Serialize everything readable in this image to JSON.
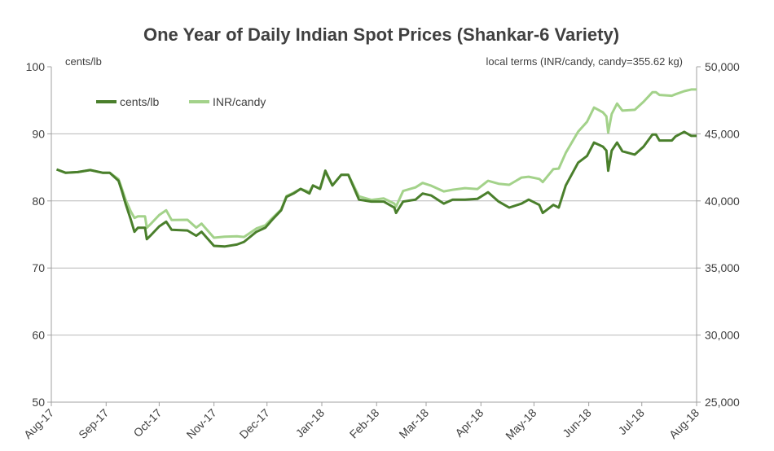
{
  "chart_data": {
    "type": "line",
    "title": "One Year of Daily Indian Spot Prices (Shankar-6 Variety)",
    "ylabel_left": "cents/lb",
    "ylabel_right": "local terms (INR/candy, candy=355.62 kg)",
    "ylim_left": [
      50,
      100
    ],
    "ylim_right": [
      25000,
      50000
    ],
    "yticks_left": [
      "50",
      "60",
      "70",
      "80",
      "90",
      "100"
    ],
    "yticks_right": [
      "25,000",
      "30,000",
      "35,000",
      "40,000",
      "45,000",
      "50,000"
    ],
    "xlim": [
      "2017-08-01",
      "2018-08-01"
    ],
    "xticks": [
      "Aug-17",
      "Sep-17",
      "Oct-17",
      "Nov-17",
      "Dec-17",
      "Jan-18",
      "Feb-18",
      "Mar-18",
      "Apr-18",
      "May-18",
      "Jun-18",
      "Jul-18",
      "Aug-18"
    ],
    "xtick_dates": [
      "2017-08-01",
      "2017-09-01",
      "2017-10-01",
      "2017-11-01",
      "2017-12-01",
      "2018-01-01",
      "2018-02-01",
      "2018-03-01",
      "2018-04-01",
      "2018-05-01",
      "2018-06-01",
      "2018-07-01",
      "2018-08-01"
    ],
    "grid": "horizontal",
    "legend_placement": "top-left",
    "dates": [
      "2017-08-04",
      "2017-08-09",
      "2017-08-16",
      "2017-08-23",
      "2017-08-30",
      "2017-09-03",
      "2017-09-08",
      "2017-09-10",
      "2017-09-12",
      "2017-09-15",
      "2017-09-17",
      "2017-09-19",
      "2017-09-23",
      "2017-09-24",
      "2017-09-26",
      "2017-10-01",
      "2017-10-05",
      "2017-10-08",
      "2017-10-17",
      "2017-10-22",
      "2017-10-25",
      "2017-10-28",
      "2017-11-01",
      "2017-11-07",
      "2017-11-14",
      "2017-11-18",
      "2017-11-25",
      "2017-11-30",
      "2017-12-04",
      "2017-12-09",
      "2017-12-12",
      "2017-12-16",
      "2017-12-20",
      "2017-12-25",
      "2017-12-27",
      "2017-12-31",
      "2018-01-03",
      "2018-01-07",
      "2018-01-12",
      "2018-01-16",
      "2018-01-22",
      "2018-01-29",
      "2018-02-05",
      "2018-02-11",
      "2018-02-12",
      "2018-02-16",
      "2018-02-23",
      "2018-02-27",
      "2018-03-04",
      "2018-03-11",
      "2018-03-16",
      "2018-03-23",
      "2018-03-30",
      "2018-04-05",
      "2018-04-11",
      "2018-04-17",
      "2018-04-24",
      "2018-04-28",
      "2018-05-04",
      "2018-05-06",
      "2018-05-12",
      "2018-05-15",
      "2018-05-19",
      "2018-05-26",
      "2018-05-31",
      "2018-06-04",
      "2018-06-09",
      "2018-06-11",
      "2018-06-12",
      "2018-06-14",
      "2018-06-17",
      "2018-06-20",
      "2018-06-27",
      "2018-07-02",
      "2018-07-07",
      "2018-07-09",
      "2018-07-11",
      "2018-07-18",
      "2018-07-20",
      "2018-07-25",
      "2018-07-29",
      "2018-08-01"
    ],
    "series": [
      {
        "name": "cents/lb",
        "axis": "left",
        "color": "#4a7f2c",
        "values": [
          84.7,
          84.2,
          84.3,
          84.6,
          84.2,
          84.2,
          83.0,
          81.4,
          79.6,
          77.2,
          75.4,
          76.0,
          76.0,
          74.3,
          74.8,
          76.2,
          76.9,
          75.7,
          75.6,
          74.8,
          75.4,
          74.5,
          73.3,
          73.2,
          73.5,
          73.9,
          75.4,
          76.0,
          77.2,
          78.6,
          80.6,
          81.1,
          81.8,
          81.1,
          82.3,
          81.8,
          84.5,
          82.3,
          83.9,
          83.9,
          80.2,
          79.9,
          79.9,
          79.0,
          78.2,
          79.9,
          80.2,
          81.1,
          80.8,
          79.6,
          80.2,
          80.2,
          80.3,
          81.3,
          79.9,
          79.0,
          79.6,
          80.2,
          79.4,
          78.2,
          79.4,
          79.0,
          82.3,
          85.7,
          86.7,
          88.7,
          88.1,
          87.5,
          84.5,
          87.5,
          88.7,
          87.4,
          86.9,
          88.1,
          89.9,
          89.9,
          89.0,
          89.0,
          89.6,
          90.3,
          89.7,
          89.7
        ]
      },
      {
        "name": "INR/candy",
        "axis": "right",
        "color": "#a3d28a",
        "values": [
          42350,
          42100,
          42150,
          42300,
          42100,
          42100,
          41620,
          40880,
          40100,
          39210,
          38730,
          38850,
          38850,
          38000,
          38250,
          38950,
          39300,
          38580,
          38590,
          38010,
          38310,
          37860,
          37260,
          37330,
          37360,
          37310,
          37940,
          38180,
          38720,
          39360,
          40360,
          40610,
          40900,
          40670,
          41150,
          40900,
          42130,
          41150,
          41950,
          41950,
          40340,
          40070,
          40190,
          39800,
          39580,
          40740,
          41010,
          41340,
          41130,
          40710,
          40830,
          40950,
          40880,
          41500,
          41280,
          41200,
          41740,
          41800,
          41640,
          41410,
          42370,
          42410,
          43580,
          45160,
          45900,
          46960,
          46600,
          46300,
          45100,
          46480,
          47260,
          46730,
          46790,
          47390,
          48100,
          48100,
          47900,
          47840,
          47950,
          48180,
          48310,
          48310
        ]
      }
    ]
  }
}
